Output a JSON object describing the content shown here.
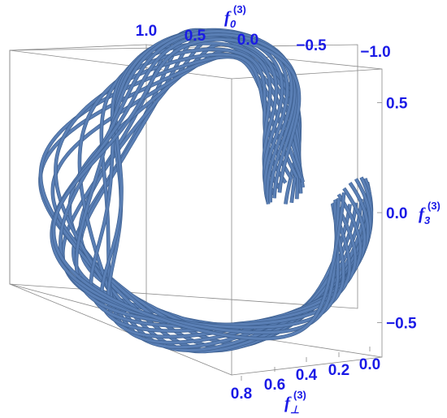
{
  "chart_data": {
    "type": "line",
    "title": "",
    "axes": {
      "f0": {
        "label_base": "f",
        "label_sub": "0",
        "label_sup": "(3)",
        "range": [
          1.0,
          -1.0
        ],
        "ticks": [
          1.0,
          0.5,
          0.0,
          -0.5,
          -1.0
        ],
        "tick_labels": [
          "1.0",
          "0.5",
          "0.0",
          "−0.5",
          "−1.0"
        ]
      },
      "f3": {
        "label_base": "f",
        "label_sub": "3",
        "label_sup": "(3)",
        "range": [
          0.7,
          -0.7
        ],
        "ticks": [
          0.5,
          0.0,
          -0.5
        ],
        "tick_labels": [
          "0.5",
          "0.0",
          "−0.5"
        ]
      },
      "fperp": {
        "label_base": "f",
        "label_sub": "⊥",
        "label_sup": "(3)",
        "range": [
          0.8,
          0.0
        ],
        "ticks": [
          0.8,
          0.6,
          0.4,
          0.2,
          0.0
        ],
        "tick_labels": [
          "0.8",
          "0.6",
          "0.4",
          "0.2",
          "0.0"
        ]
      }
    },
    "series": [
      {
        "loops": 18,
        "color": "#5a7fb5"
      }
    ],
    "grid": false,
    "legend": "none",
    "colors": {
      "curve": "#5a7fb5",
      "curve_shadow": "#3d5f8f",
      "labels": "#1a1ae6",
      "box": "#8a8a8a"
    }
  }
}
